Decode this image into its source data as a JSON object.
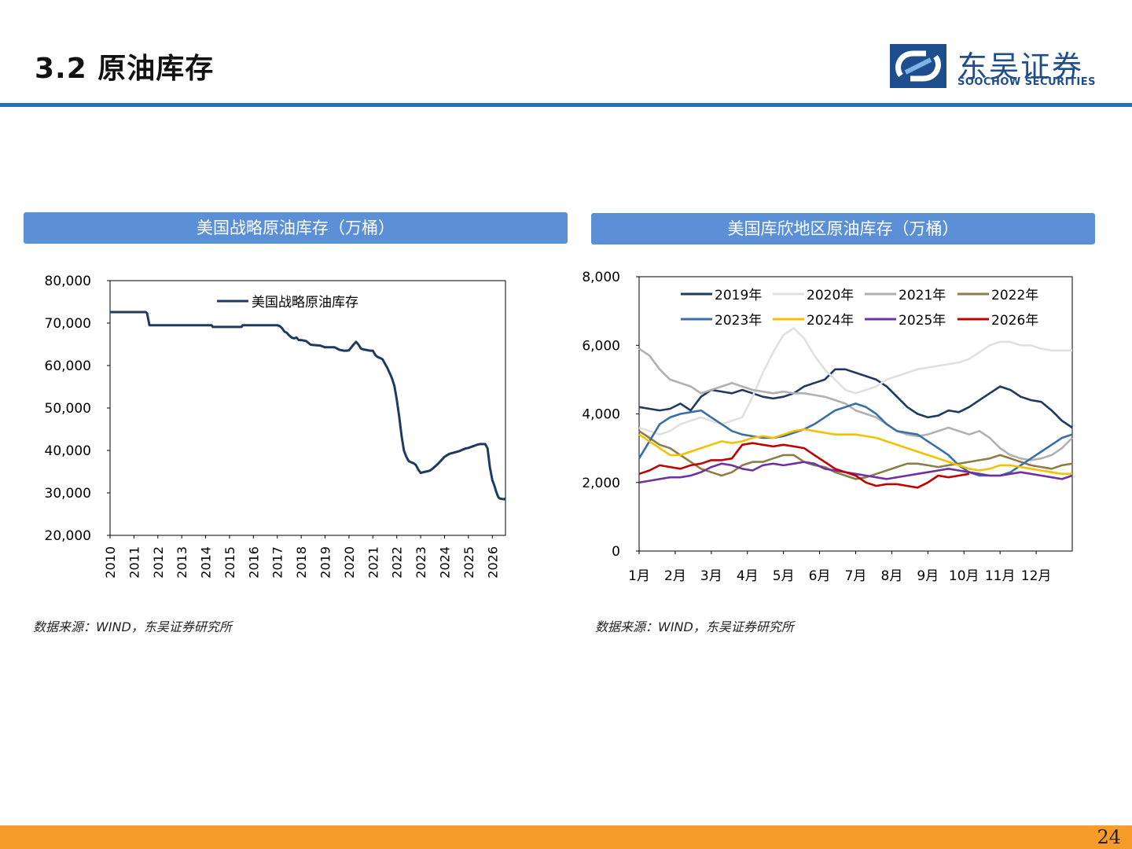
{
  "header": {
    "title": "3.2 原油库存"
  },
  "logo": {
    "cn": "东吴证券",
    "en": "SOOCHOW SECURITIES"
  },
  "panels": [
    {
      "title": "美国战略原油库存（万桶）",
      "source": "数据来源：WIND，东吴证券研究所"
    },
    {
      "title": "美国库欣地区原油库存（万桶）",
      "source": "数据来源：WIND，东吴证券研究所"
    }
  ],
  "footer": {
    "page": "24"
  },
  "colors": {
    "accent_blue": "#1f6fc0",
    "header_fill": "#5b8fd6",
    "footer_orange": "#f79c2b"
  },
  "chart_data": [
    {
      "type": "line",
      "title": "美国战略原油库存（万桶）",
      "ylim": [
        20000,
        80000
      ],
      "yticks": [
        "80,000",
        "70,000",
        "60,000",
        "50,000",
        "40,000",
        "30,000",
        "20,000"
      ],
      "yvals": [
        80000,
        70000,
        60000,
        50000,
        40000,
        30000,
        20000
      ],
      "xlim": [
        2010,
        2026.55
      ],
      "xticks": [
        "2010",
        "2011",
        "2012",
        "2013",
        "2014",
        "2015",
        "2016",
        "2017",
        "2018",
        "2019",
        "2020",
        "2021",
        "2022",
        "2023",
        "2024",
        "2025",
        "2026"
      ],
      "legend": "top",
      "series": [
        {
          "name": "美国战略原油库存",
          "color": "#1f3a5f",
          "x": [
            2010,
            2011,
            2011.5,
            2011.55,
            2011.65,
            2012,
            2013,
            2014,
            2014.25,
            2014.3,
            2015,
            2015.5,
            2015.55,
            2016,
            2016.5,
            2017,
            2017.1,
            2017.2,
            2017.3,
            2017.4,
            2017.5,
            2017.6,
            2017.7,
            2017.8,
            2017.9,
            2018,
            2018.2,
            2018.4,
            2018.6,
            2018.8,
            2019,
            2019.2,
            2019.4,
            2019.6,
            2019.8,
            2019.9,
            2020,
            2020.2,
            2020.3,
            2020.4,
            2020.5,
            2020.6,
            2020.7,
            2020.8,
            2020.9,
            2021,
            2021.1,
            2021.2,
            2021.3,
            2021.4,
            2021.5,
            2021.6,
            2021.7,
            2021.8,
            2021.9,
            2022,
            2022.1,
            2022.2,
            2022.3,
            2022.4,
            2022.5,
            2022.6,
            2022.7,
            2022.8,
            2022.9,
            2023,
            2023.2,
            2023.3,
            2023.4,
            2023.5,
            2023.6,
            2023.7,
            2023.8,
            2023.9,
            2024,
            2024.2,
            2024.4,
            2024.6,
            2024.8,
            2024.9,
            2025,
            2025.1,
            2025.2,
            2025.3,
            2025.4,
            2025.5,
            2025.6,
            2025.7,
            2025.8,
            2025.9,
            2026,
            2026.1,
            2026.15,
            2026.2,
            2026.25,
            2026.3,
            2026.4,
            2026.5,
            2026.55
          ],
          "y": [
            72600,
            72600,
            72600,
            72300,
            69500,
            69500,
            69500,
            69500,
            69500,
            69100,
            69100,
            69100,
            69500,
            69500,
            69500,
            69500,
            69300,
            68800,
            68000,
            67700,
            67100,
            66600,
            66400,
            66600,
            66000,
            66000,
            65800,
            64900,
            64800,
            64700,
            64300,
            64300,
            64300,
            63700,
            63500,
            63500,
            63600,
            65000,
            65600,
            64900,
            64000,
            63800,
            63700,
            63600,
            63500,
            63500,
            62500,
            62000,
            61800,
            61500,
            60500,
            59500,
            58300,
            57000,
            55200,
            52000,
            48000,
            43500,
            40000,
            38500,
            37500,
            37200,
            37000,
            36600,
            35500,
            34700,
            35000,
            35100,
            35300,
            35700,
            36200,
            36700,
            37300,
            37900,
            38500,
            39200,
            39500,
            39800,
            40300,
            40500,
            40600,
            40800,
            41000,
            41200,
            41400,
            41500,
            41500,
            41500,
            40500,
            36000,
            33000,
            31500,
            30500,
            29700,
            29000,
            28700,
            28600,
            28500,
            28700
          ]
        }
      ]
    },
    {
      "type": "line",
      "title": "美国库欣地区原油库存（万桶）",
      "ylim": [
        0,
        8000
      ],
      "yticks": [
        "8,000",
        "6,000",
        "4,000",
        "2,000",
        "0"
      ],
      "yvals": [
        8000,
        6000,
        4000,
        2000,
        0
      ],
      "xlim": [
        1,
        13
      ],
      "xticks": [
        "1月",
        "2月",
        "3月",
        "4月",
        "5月",
        "6月",
        "7月",
        "8月",
        "9月",
        "10月",
        "11月",
        "12月"
      ],
      "legend": "top",
      "series": [
        {
          "name": "2019年",
          "color": "#1f3a5f",
          "y": [
            4200,
            4150,
            4100,
            4150,
            4300,
            4100,
            4500,
            4700,
            4650,
            4600,
            4700,
            4600,
            4500,
            4450,
            4500,
            4600,
            4800,
            4900,
            5000,
            5300,
            5300,
            5200,
            5100,
            5000,
            4800,
            4500,
            4200,
            4000,
            3900,
            3950,
            4100,
            4050,
            4200,
            4400,
            4600,
            4800,
            4700,
            4500,
            4400,
            4350,
            4100,
            3800,
            3600
          ]
        },
        {
          "name": "2020年",
          "color": "#e0e0e0",
          "y": [
            3600,
            3500,
            3400,
            3500,
            3700,
            3800,
            3900,
            3800,
            3700,
            3800,
            3900,
            4500,
            5200,
            5800,
            6300,
            6500,
            6200,
            5700,
            5300,
            5000,
            4700,
            4600,
            4700,
            4800,
            5000,
            5100,
            5200,
            5300,
            5350,
            5400,
            5450,
            5500,
            5600,
            5800,
            6000,
            6100,
            6100,
            6000,
            6000,
            5900,
            5850,
            5850,
            5850
          ]
        },
        {
          "name": "2021年",
          "color": "#b0b0b0",
          "y": [
            5900,
            5700,
            5300,
            5000,
            4900,
            4800,
            4600,
            4700,
            4800,
            4900,
            4800,
            4700,
            4650,
            4600,
            4650,
            4600,
            4600,
            4550,
            4500,
            4400,
            4300,
            4100,
            4000,
            3900,
            3700,
            3500,
            3400,
            3350,
            3400,
            3500,
            3600,
            3500,
            3400,
            3500,
            3300,
            3000,
            2800,
            2700,
            2650,
            2700,
            2800,
            3000,
            3300
          ]
        },
        {
          "name": "2022年",
          "color": "#8b7d4a",
          "y": [
            3500,
            3300,
            3100,
            3000,
            2800,
            2600,
            2400,
            2300,
            2200,
            2300,
            2500,
            2600,
            2600,
            2700,
            2800,
            2800,
            2600,
            2500,
            2450,
            2300,
            2200,
            2100,
            2150,
            2250,
            2350,
            2450,
            2550,
            2550,
            2500,
            2450,
            2500,
            2550,
            2600,
            2650,
            2700,
            2800,
            2700,
            2600,
            2500,
            2450,
            2400,
            2500,
            2550
          ]
        },
        {
          "name": "2023年",
          "color": "#3a6ea5",
          "y": [
            2700,
            3200,
            3700,
            3900,
            4000,
            4050,
            4100,
            3900,
            3700,
            3500,
            3400,
            3350,
            3300,
            3300,
            3350,
            3450,
            3550,
            3700,
            3900,
            4100,
            4200,
            4300,
            4200,
            4000,
            3700,
            3500,
            3450,
            3400,
            3200,
            3000,
            2800,
            2500,
            2300,
            2200,
            2200,
            2200,
            2300,
            2500,
            2700,
            2900,
            3100,
            3300,
            3400
          ]
        },
        {
          "name": "2024年",
          "color": "#f5c000",
          "y": [
            3400,
            3200,
            3000,
            2800,
            2800,
            2900,
            3000,
            3100,
            3200,
            3150,
            3200,
            3300,
            3350,
            3300,
            3400,
            3500,
            3550,
            3500,
            3450,
            3400,
            3400,
            3400,
            3350,
            3300,
            3200,
            3100,
            3000,
            2900,
            2800,
            2700,
            2600,
            2500,
            2400,
            2350,
            2400,
            2500,
            2500,
            2450,
            2400,
            2350,
            2300,
            2250,
            2250
          ]
        },
        {
          "name": "2025年",
          "color": "#7030a0",
          "y": [
            2000,
            2050,
            2100,
            2150,
            2150,
            2200,
            2300,
            2450,
            2550,
            2500,
            2400,
            2350,
            2500,
            2550,
            2500,
            2550,
            2600,
            2550,
            2400,
            2350,
            2300,
            2250,
            2200,
            2150,
            2100,
            2150,
            2200,
            2250,
            2300,
            2350,
            2400,
            2350,
            2300,
            2250,
            2200,
            2200,
            2250,
            2300,
            2250,
            2200,
            2150,
            2100,
            2200
          ]
        },
        {
          "name": "2026年",
          "color": "#c00000",
          "y": [
            2250,
            2350,
            2500,
            2450,
            2400,
            2500,
            2550,
            2650,
            2650,
            2700,
            3100,
            3150,
            3100,
            3050,
            3100,
            3050,
            3000,
            2800,
            2600,
            2400,
            2300,
            2200,
            2000,
            1900,
            1950,
            1950,
            1900,
            1850,
            2000,
            2200,
            2150,
            2200,
            2250
          ]
        }
      ]
    }
  ]
}
